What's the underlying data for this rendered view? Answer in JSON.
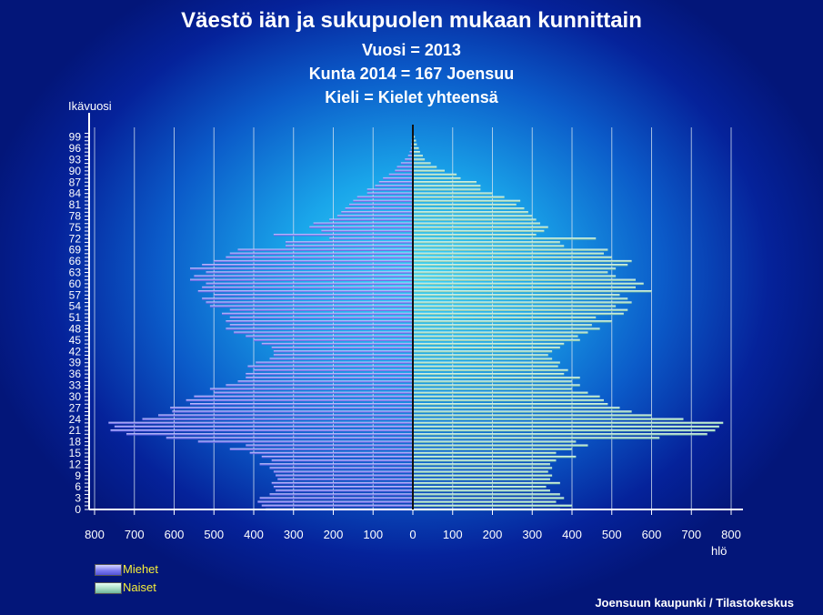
{
  "title": "Väestö iän ja sukupuolen mukaan kunnittain",
  "subtitles": [
    "Vuosi = 2013",
    "Kunta 2014 = 167 Joensuu",
    "Kieli = Kielet yhteensä"
  ],
  "source": "Joensuun kaupunki / Tilastokeskus",
  "colors": {
    "men": "#8a8af5",
    "women": "#a9dcc6",
    "axis": "#ffffff",
    "grid": "#d8e4f0",
    "legend_text": "#f6ee3a"
  },
  "chart_data": {
    "type": "bar",
    "orientation": "horizontal",
    "layout": "population-pyramid",
    "ylabel": "Ikävuosi",
    "xlabel": "hlö",
    "xlim": [
      -800,
      800
    ],
    "x_ticks": [
      800,
      700,
      600,
      500,
      400,
      300,
      200,
      100,
      0,
      100,
      200,
      300,
      400,
      500,
      600,
      700,
      800
    ],
    "y_ticks": [
      0,
      3,
      6,
      9,
      12,
      15,
      18,
      21,
      24,
      27,
      30,
      33,
      36,
      39,
      42,
      45,
      48,
      51,
      54,
      57,
      60,
      63,
      66,
      69,
      72,
      75,
      78,
      81,
      84,
      87,
      90,
      93,
      96,
      99
    ],
    "grid": "vertical",
    "legend": "bottom-left",
    "categories": [
      0,
      1,
      2,
      3,
      4,
      5,
      6,
      7,
      8,
      9,
      10,
      11,
      12,
      13,
      14,
      15,
      16,
      17,
      18,
      19,
      20,
      21,
      22,
      23,
      24,
      25,
      26,
      27,
      28,
      29,
      30,
      31,
      32,
      33,
      34,
      35,
      36,
      37,
      38,
      39,
      40,
      41,
      42,
      43,
      44,
      45,
      46,
      47,
      48,
      49,
      50,
      51,
      52,
      53,
      54,
      55,
      56,
      57,
      58,
      59,
      60,
      61,
      62,
      63,
      64,
      65,
      66,
      67,
      68,
      69,
      70,
      71,
      72,
      73,
      74,
      75,
      76,
      77,
      78,
      79,
      80,
      81,
      82,
      83,
      84,
      85,
      86,
      87,
      88,
      89,
      90,
      91,
      92,
      93,
      94,
      95,
      96,
      97,
      98,
      99,
      100
    ],
    "series": [
      {
        "name": "Miehet",
        "values": [
          370,
          380,
          390,
          385,
          360,
          345,
          350,
          355,
          340,
          345,
          350,
          360,
          385,
          355,
          380,
          410,
          460,
          420,
          540,
          620,
          720,
          760,
          750,
          765,
          680,
          640,
          605,
          610,
          560,
          570,
          550,
          500,
          510,
          470,
          440,
          420,
          420,
          400,
          415,
          395,
          360,
          350,
          350,
          355,
          380,
          400,
          420,
          450,
          470,
          460,
          470,
          460,
          480,
          460,
          510,
          520,
          530,
          500,
          540,
          530,
          520,
          560,
          550,
          520,
          560,
          530,
          500,
          470,
          460,
          440,
          320,
          320,
          210,
          350,
          230,
          260,
          250,
          210,
          190,
          180,
          170,
          160,
          150,
          140,
          115,
          115,
          95,
          85,
          75,
          60,
          45,
          40,
          30,
          20,
          12,
          8,
          5,
          4,
          3,
          2,
          1
        ]
      },
      {
        "name": "Naiset",
        "values": [
          370,
          400,
          360,
          380,
          370,
          345,
          335,
          370,
          345,
          350,
          340,
          350,
          345,
          360,
          410,
          360,
          400,
          440,
          410,
          620,
          740,
          760,
          770,
          780,
          680,
          600,
          550,
          520,
          490,
          480,
          470,
          440,
          400,
          420,
          400,
          420,
          380,
          390,
          365,
          370,
          350,
          340,
          350,
          370,
          380,
          420,
          415,
          440,
          470,
          450,
          500,
          460,
          530,
          540,
          510,
          550,
          540,
          520,
          600,
          560,
          580,
          560,
          510,
          490,
          510,
          540,
          550,
          500,
          480,
          490,
          380,
          370,
          460,
          310,
          330,
          340,
          320,
          310,
          300,
          290,
          280,
          260,
          270,
          230,
          200,
          170,
          170,
          160,
          120,
          110,
          80,
          60,
          45,
          30,
          25,
          18,
          15,
          10,
          8,
          5,
          2
        ]
      }
    ]
  }
}
